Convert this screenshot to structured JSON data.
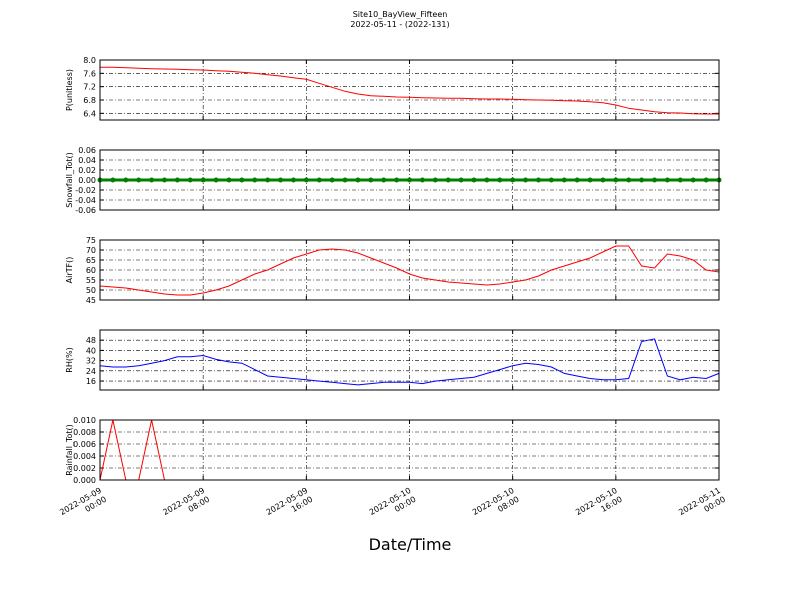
{
  "chart_data": {
    "type": "line",
    "title": "Site10_BayView_Fifteen",
    "subtitle": "2022-05-11 - (2022-131)",
    "xlabel": "Date/Time",
    "grid": true,
    "x": [
      "2022-05-09 00:00",
      "2022-05-09 01:00",
      "2022-05-09 02:00",
      "2022-05-09 03:00",
      "2022-05-09 04:00",
      "2022-05-09 05:00",
      "2022-05-09 06:00",
      "2022-05-09 07:00",
      "2022-05-09 08:00",
      "2022-05-09 09:00",
      "2022-05-09 10:00",
      "2022-05-09 11:00",
      "2022-05-09 12:00",
      "2022-05-09 13:00",
      "2022-05-09 14:00",
      "2022-05-09 15:00",
      "2022-05-09 16:00",
      "2022-05-09 17:00",
      "2022-05-09 18:00",
      "2022-05-09 19:00",
      "2022-05-09 20:00",
      "2022-05-09 21:00",
      "2022-05-09 22:00",
      "2022-05-09 23:00",
      "2022-05-10 00:00",
      "2022-05-10 01:00",
      "2022-05-10 02:00",
      "2022-05-10 03:00",
      "2022-05-10 04:00",
      "2022-05-10 05:00",
      "2022-05-10 06:00",
      "2022-05-10 07:00",
      "2022-05-10 08:00",
      "2022-05-10 09:00",
      "2022-05-10 10:00",
      "2022-05-10 11:00",
      "2022-05-10 12:00",
      "2022-05-10 13:00",
      "2022-05-10 14:00",
      "2022-05-10 15:00",
      "2022-05-10 16:00",
      "2022-05-10 17:00",
      "2022-05-10 18:00",
      "2022-05-10 19:00",
      "2022-05-10 20:00",
      "2022-05-10 21:00",
      "2022-05-10 22:00",
      "2022-05-10 23:00",
      "2022-05-11 00:00"
    ],
    "xlim": [
      "2022-05-09 00:00",
      "2022-05-11 00:00"
    ],
    "xticks": [
      "2022-05-09 00:00",
      "2022-05-09 08:00",
      "2022-05-09 16:00",
      "2022-05-10 00:00",
      "2022-05-10 08:00",
      "2022-05-10 16:00",
      "2022-05-11 00:00"
    ],
    "panels": [
      {
        "ylabel": "P(unitless)",
        "ylim": [
          6.2,
          8.0
        ],
        "yticks": [
          6.4,
          6.8,
          7.2,
          7.6,
          {
            "value": 8,
            "label": "8.0"
          }
        ],
        "series": [
          {
            "color": "#ff0000",
            "values": [
              7.78,
              7.78,
              7.77,
              7.75,
              7.74,
              7.73,
              7.72,
              7.71,
              7.7,
              7.68,
              7.66,
              7.63,
              7.6,
              7.56,
              7.52,
              7.47,
              7.42,
              7.3,
              7.18,
              7.06,
              6.98,
              6.93,
              6.91,
              6.89,
              6.88,
              6.87,
              6.86,
              6.85,
              6.85,
              6.84,
              6.83,
              6.83,
              6.82,
              6.81,
              6.8,
              6.79,
              6.78,
              6.77,
              6.75,
              6.72,
              6.65,
              6.55,
              6.5,
              6.45,
              6.42,
              6.41,
              6.39,
              6.38,
              6.38
            ]
          }
        ]
      },
      {
        "ylabel": "Snowfall_Tot()",
        "ylim": [
          -0.06,
          0.06
        ],
        "yticks": [
          -0.06,
          -0.04,
          -0.02,
          {
            "value": 0,
            "label": "0.00"
          },
          0.02,
          0.04,
          0.06
        ],
        "series": [
          {
            "color": "#008000",
            "marker": "o",
            "values": [
              0,
              0,
              0,
              0,
              0,
              0,
              0,
              0,
              0,
              0,
              0,
              0,
              0,
              0,
              0,
              0,
              0,
              0,
              0,
              0,
              0,
              0,
              0,
              0,
              0,
              0,
              0,
              0,
              0,
              0,
              0,
              0,
              0,
              0,
              0,
              0,
              0,
              0,
              0,
              0,
              0,
              0,
              0,
              0,
              0,
              0,
              0,
              0,
              0
            ]
          }
        ]
      },
      {
        "ylabel": "AirTF()",
        "ylim": [
          45,
          75
        ],
        "yticks": [
          45,
          50,
          55,
          60,
          65,
          70,
          75
        ],
        "series": [
          {
            "color": "#ff0000",
            "values": [
              52,
              51.5,
              51,
              50,
              49,
              48,
              47.5,
              47.5,
              48.5,
              50,
              52,
              55,
              58,
              60,
              63,
              66,
              68,
              70,
              70.5,
              70,
              68.5,
              66,
              63.5,
              61,
              58,
              56,
              55,
              54,
              53.5,
              53,
              52.5,
              53,
              54,
              55,
              57,
              60,
              62,
              64,
              66,
              69,
              72,
              72,
              62,
              61,
              68,
              67,
              65,
              60,
              59
            ]
          }
        ]
      },
      {
        "ylabel": "RH(%)",
        "ylim": [
          9,
          56
        ],
        "yticks": [
          16,
          24,
          32,
          40,
          48
        ],
        "series": [
          {
            "color": "#0000ff",
            "values": [
              28,
              27,
              27,
              28,
              30,
              32,
              35,
              35,
              36,
              33,
              31,
              30,
              25,
              20,
              19,
              18,
              17,
              16,
              15,
              14,
              13,
              14,
              15,
              15,
              15,
              14,
              16,
              17,
              18,
              19,
              22,
              25,
              28,
              30,
              29,
              27,
              22,
              20,
              18,
              17,
              17,
              18,
              47,
              49,
              20,
              17,
              19,
              18,
              22
            ]
          }
        ]
      },
      {
        "ylabel": "Rainfall_Tot()",
        "ylim": [
          0,
          0.01
        ],
        "yticks": [
          {
            "value": 0,
            "label": "0.000"
          },
          {
            "value": 0.002,
            "label": "0.002"
          },
          {
            "value": 0.004,
            "label": "0.004"
          },
          {
            "value": 0.006,
            "label": "0.006"
          },
          {
            "value": 0.008,
            "label": "0.008"
          },
          {
            "value": 0.01,
            "label": "0.010"
          }
        ],
        "series": [
          {
            "color": "#ff0000",
            "values": [
              0,
              0.01,
              0,
              0,
              0.01,
              0,
              0,
              0,
              0,
              0,
              0,
              0,
              0,
              0,
              0,
              0,
              0,
              0,
              0,
              0,
              0,
              0,
              0,
              0,
              0,
              0,
              0,
              0,
              0,
              0,
              0,
              0,
              0,
              0,
              0,
              0,
              0,
              0,
              0,
              0,
              0,
              0,
              0,
              0,
              0,
              0,
              0,
              0,
              0
            ]
          }
        ]
      }
    ]
  }
}
